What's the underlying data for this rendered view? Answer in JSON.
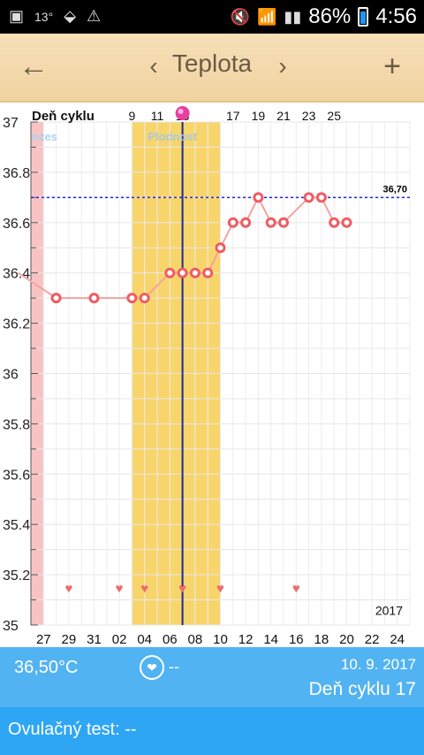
{
  "status_bar": {
    "left_icons": [
      "image-icon",
      "temperature-icon",
      "app-icon",
      "warning-icon"
    ],
    "temperature": "13°",
    "battery": "86%",
    "time": "4:56"
  },
  "toolbar": {
    "title": "Teplota",
    "back_icon": "←",
    "prev_icon": "‹",
    "next_icon": "›",
    "add_icon": "+"
  },
  "chart_data": {
    "type": "line",
    "top_label": "Deň cyklu",
    "cycle_day_labels": [
      "9",
      "11",
      "13",
      "17",
      "19",
      "21",
      "23",
      "25"
    ],
    "cycle_day_positions": [
      8,
      10,
      12,
      16,
      18,
      20,
      22,
      24
    ],
    "bottom_labels": [
      "27",
      "29",
      "31",
      "02",
      "04",
      "06",
      "08",
      "10",
      "12",
      "14",
      "16",
      "18",
      "20",
      "22",
      "24"
    ],
    "year_label": "2017",
    "y_ticks": [
      "37",
      "36.8",
      "36.6",
      "36.4",
      "36.2",
      "36",
      "35.8",
      "35.6",
      "35.4",
      "35.2",
      "35"
    ],
    "ylim": [
      35,
      37
    ],
    "xlim": [
      0,
      30
    ],
    "threshold": {
      "value": 36.7,
      "label": "36,70"
    },
    "menses_label": "nzes",
    "fertile_label": "Plodnosť",
    "series": [
      {
        "x": [
          -1,
          2,
          5,
          8,
          9,
          11,
          12,
          13,
          14,
          15,
          16,
          17,
          18,
          19,
          20,
          22,
          23,
          24,
          25
        ],
        "values": [
          36.4,
          36.3,
          36.3,
          36.3,
          36.3,
          36.4,
          36.4,
          36.4,
          36.4,
          36.5,
          36.6,
          36.6,
          36.7,
          36.6,
          36.6,
          36.7,
          36.7,
          36.6,
          36.6
        ]
      }
    ],
    "heart_days": [
      3,
      7,
      9,
      12,
      15,
      21
    ],
    "highlight": {
      "menses": [
        0,
        1
      ],
      "fertile": [
        8,
        15
      ],
      "ovulation_day": 12
    }
  },
  "footer": {
    "temperature": "36,50°C",
    "heart_value": "--",
    "date": "10. 9. 2017",
    "cycle": "Deň cyklu 17",
    "ovulation_test": "Ovulačný test: --"
  }
}
